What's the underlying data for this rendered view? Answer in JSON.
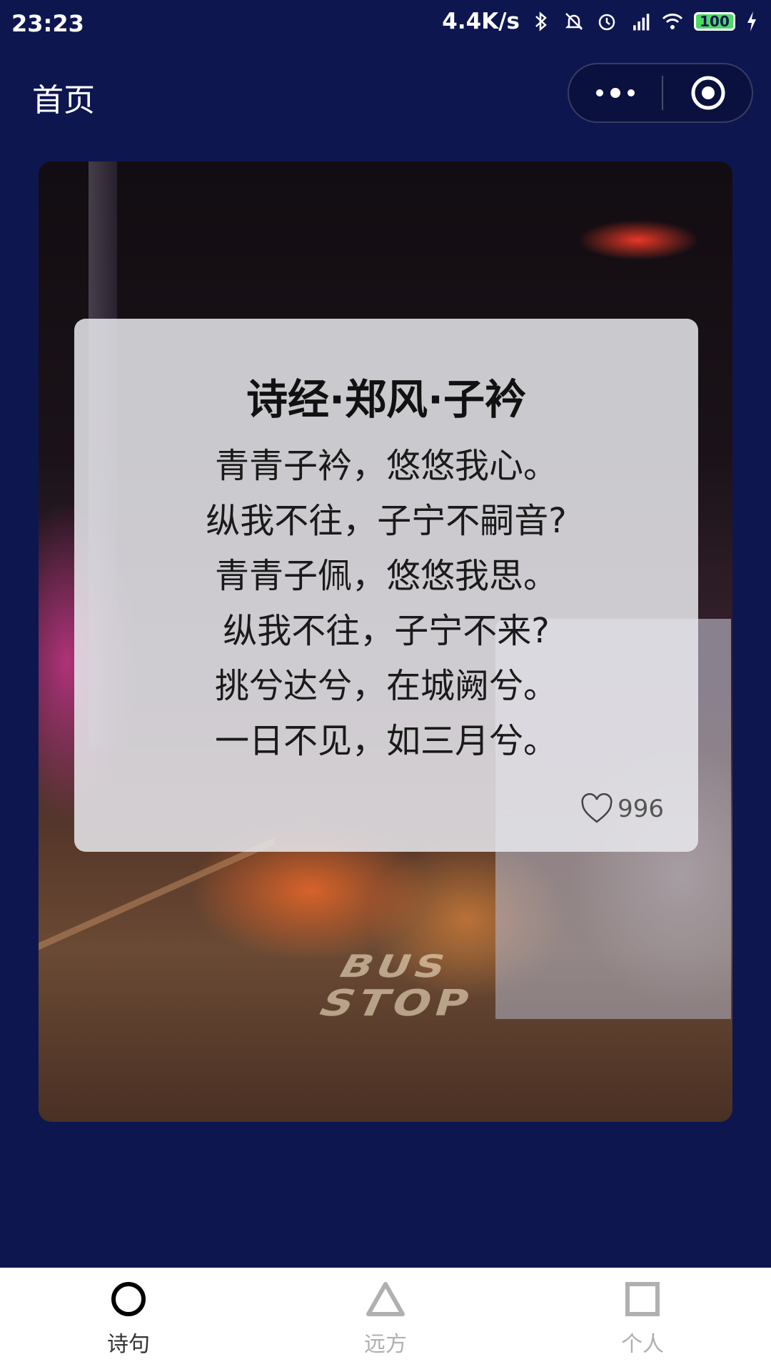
{
  "status_bar": {
    "time": "23:23",
    "network_speed": "4.4K/s",
    "battery": "100",
    "icons": [
      "bluetooth-icon",
      "bell-off-icon",
      "alarm-icon",
      "hd-signal-icon",
      "wifi-icon",
      "battery-icon",
      "charging-icon"
    ]
  },
  "nav": {
    "title": "首页",
    "capsule": {
      "more_icon": "more-dots-icon",
      "close_icon": "target-close-icon"
    }
  },
  "poem": {
    "title": "诗经·郑风·子衿",
    "lines": [
      "青青子衿，悠悠我心。",
      "纵我不往，子宁不嗣音?",
      "青青子佩，悠悠我思。",
      "纵我不往，子宁不来?",
      "挑兮达兮，在城阙兮。",
      "一日不见，如三月兮。"
    ],
    "likes": "996",
    "like_icon": "heart-icon"
  },
  "background_image": {
    "road_text": [
      "BUS",
      "STOP"
    ]
  },
  "tabs": [
    {
      "label": "诗句",
      "icon": "circle-icon",
      "active": true
    },
    {
      "label": "远方",
      "icon": "triangle-icon",
      "active": false
    },
    {
      "label": "个人",
      "icon": "square-icon",
      "active": false
    }
  ],
  "colors": {
    "background": "#0e1650",
    "tab_active": "#333333",
    "tab_inactive": "#b0b0b0",
    "card": "#e8e8ec"
  }
}
